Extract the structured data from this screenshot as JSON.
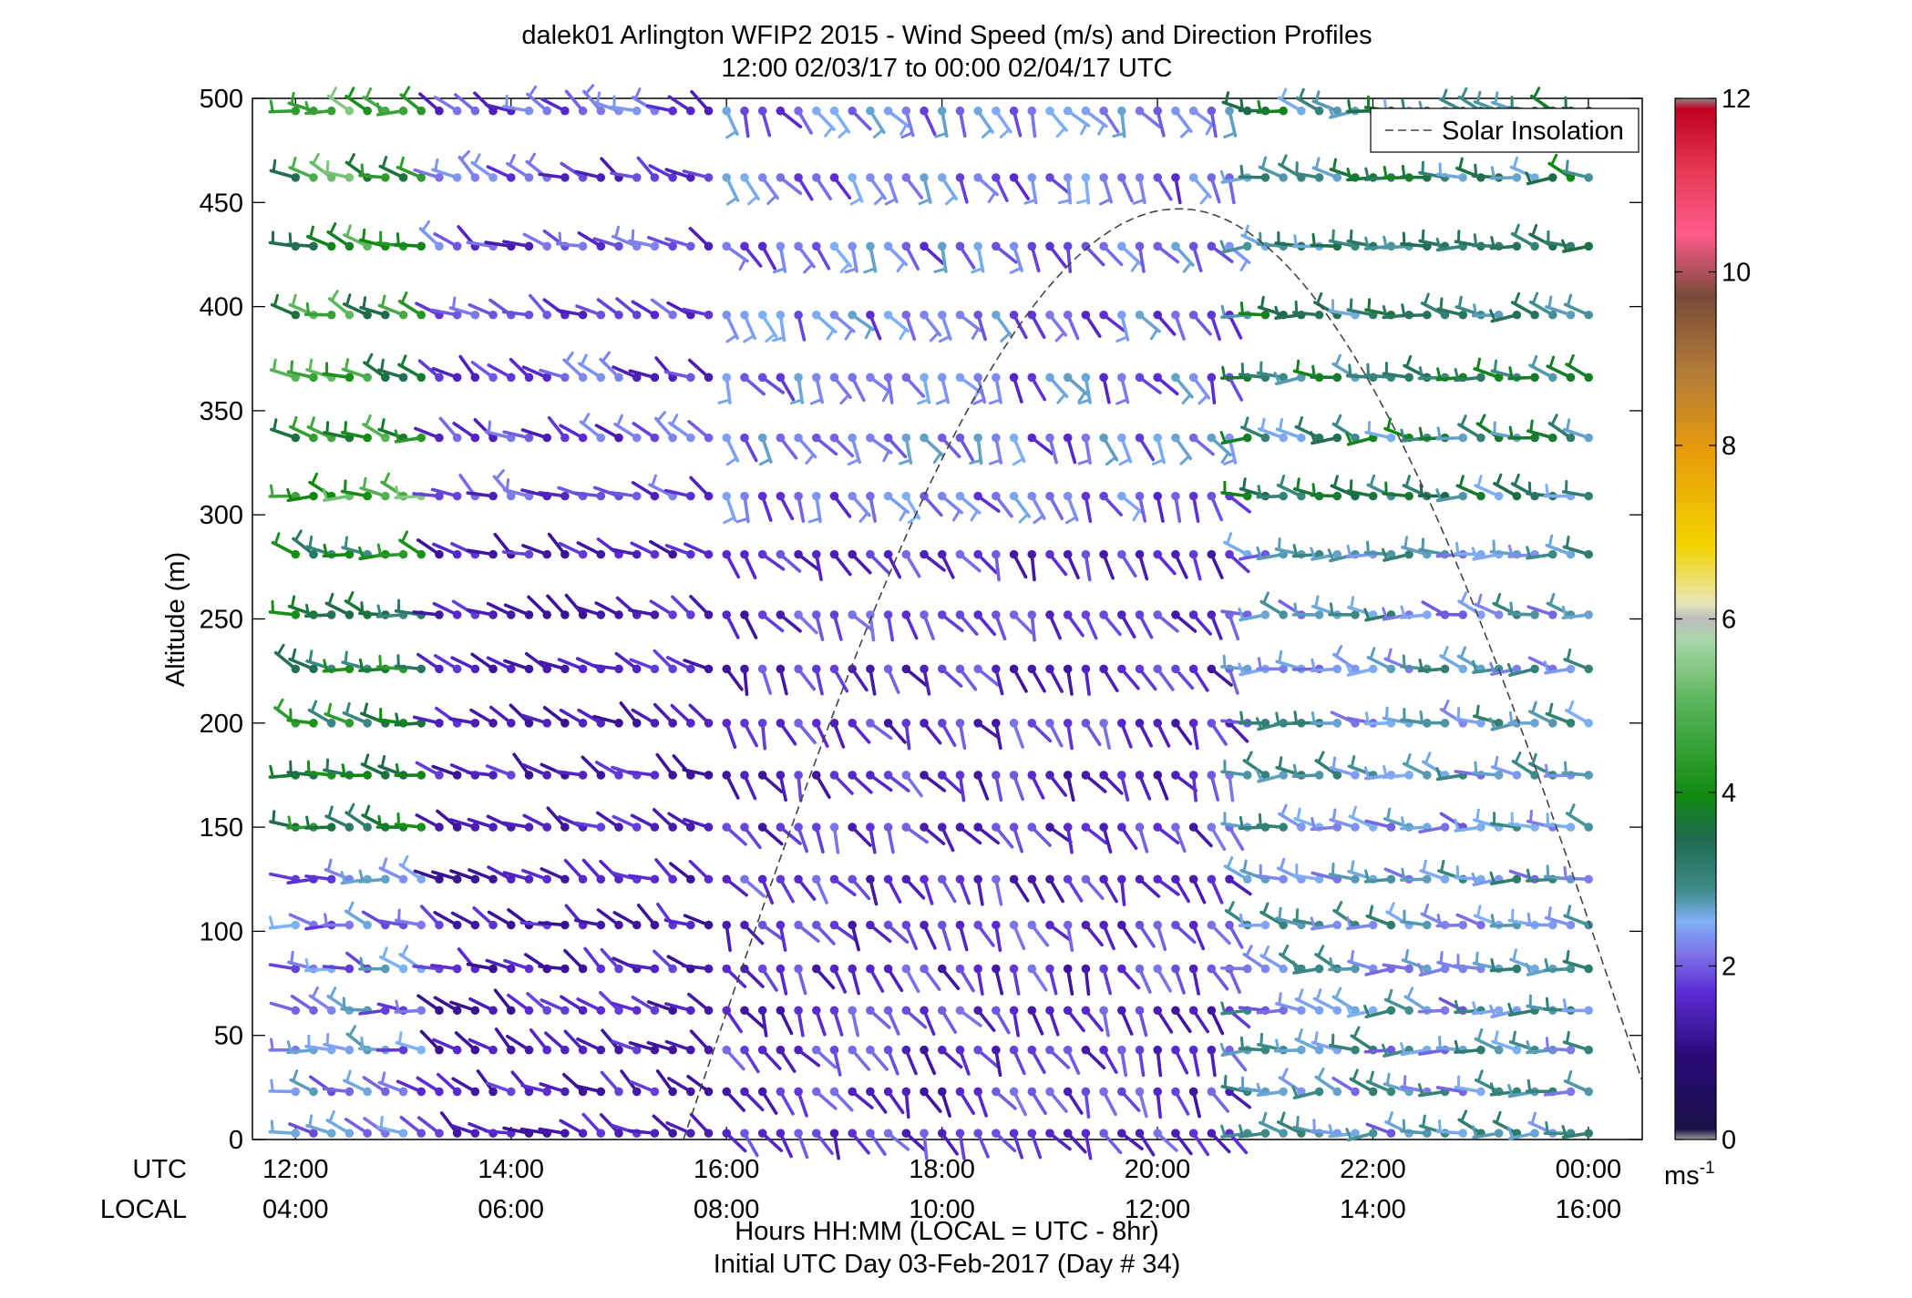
{
  "chart_data": {
    "type": "wind-barb-profile",
    "title": "dalek01 Arlington WFIP2 2015 - Wind Speed (m/s) and Direction Profiles",
    "subtitle": "12:00 02/03/17 to 00:00 02/04/17  UTC",
    "ylabel": "Altitude (m)",
    "xlabel": "Hours HH:MM  (LOCAL = UTC - 8hr)",
    "xlabel2": "Initial UTC Day 03-Feb-2017 (Day # 34)",
    "utc_row_label": "UTC",
    "local_row_label": "LOCAL",
    "ylim": [
      0,
      500
    ],
    "xlim_hours": [
      11.6,
      24.5
    ],
    "yticks": [
      "0",
      "50",
      "100",
      "150",
      "200",
      "250",
      "300",
      "350",
      "400",
      "450",
      "500"
    ],
    "xticks_utc": [
      "12:00",
      "14:00",
      "16:00",
      "18:00",
      "20:00",
      "22:00",
      "00:00"
    ],
    "xticks_local": [
      "04:00",
      "06:00",
      "08:00",
      "10:00",
      "12:00",
      "14:00",
      "16:00"
    ],
    "xtick_hours": [
      12,
      14,
      16,
      18,
      20,
      22,
      24
    ],
    "legend": {
      "entries": [
        "Solar Insolation"
      ],
      "placement": "top-right"
    },
    "colorbar": {
      "range": [
        0,
        12
      ],
      "ticks": [
        "0",
        "2",
        "4",
        "6",
        "8",
        "10",
        "12"
      ],
      "unit": "ms",
      "unit_exp": "-1"
    },
    "solar_insolation_curve": {
      "start_hour": 15.6,
      "peak_hour": 20.2,
      "end_hour": 24.5,
      "peak_altitude_equiv": 447,
      "end_altitude_equiv": 28
    },
    "altitudes_m": [
      3,
      23,
      43,
      62,
      82,
      103,
      125,
      150,
      175,
      200,
      226,
      252,
      281,
      309,
      337,
      366,
      396,
      429,
      462,
      494
    ],
    "time_start_hour": 12.0,
    "time_step_hour": 0.1667,
    "time_count": 73,
    "wind_regimes": [
      {
        "hours": [
          12.0,
          13.2
        ],
        "speed_ms": 3.4,
        "direction_deg": 285
      },
      {
        "hours": [
          13.2,
          15.9
        ],
        "speed_ms": 1.4,
        "direction_deg": 300
      },
      {
        "hours": [
          15.9,
          20.8
        ],
        "speed_ms": 1.6,
        "direction_deg": 150
      },
      {
        "hours": [
          20.8,
          24.2
        ],
        "speed_ms": 2.4,
        "direction_deg": 280
      }
    ]
  }
}
